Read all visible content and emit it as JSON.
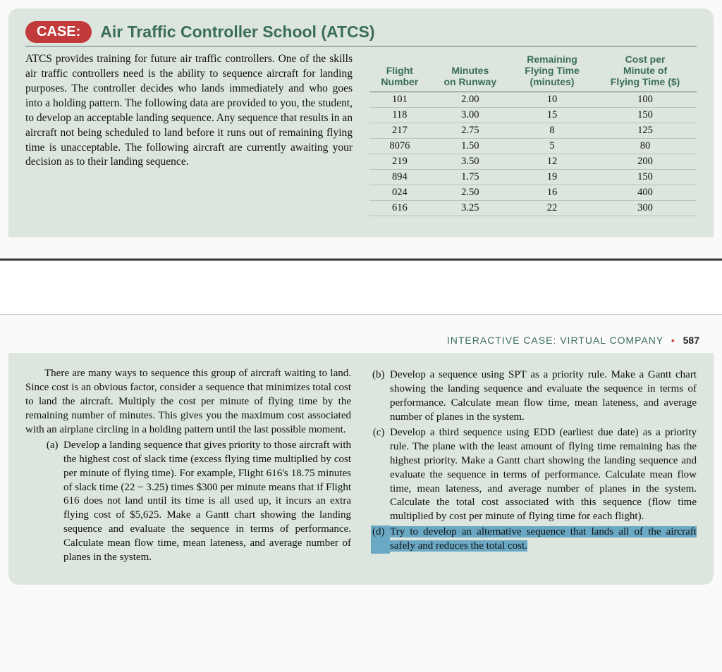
{
  "case": {
    "pill": "CASE:",
    "heading": "Air Traffic Controller School (ATCS)",
    "intro": "ATCS provides training for future air traffic controllers. One of the skills air traffic controllers need is the ability to sequence aircraft for landing purposes. The controller decides who lands immediately and who goes into a holding pattern. The following data are provided to you, the student, to develop an acceptable landing sequence. Any sequence that results in an aircraft not being scheduled to land before it runs out of remaining flying time is unacceptable. The following aircraft are currently awaiting your decision as to their landing sequence."
  },
  "table": {
    "headers": {
      "c1a": "Flight",
      "c1b": "Number",
      "c2a": "Minutes",
      "c2b": "on Runway",
      "c3a": "Remaining",
      "c3b": "Flying Time",
      "c3c": "(minutes)",
      "c4a": "Cost per",
      "c4b": "Minute of",
      "c4c": "Flying Time ($)"
    },
    "rows": [
      {
        "f": "101",
        "m": "2.00",
        "r": "10",
        "c": "100"
      },
      {
        "f": "118",
        "m": "3.00",
        "r": "15",
        "c": "150"
      },
      {
        "f": "217",
        "m": "2.75",
        "r": "8",
        "c": "125"
      },
      {
        "f": "8076",
        "m": "1.50",
        "r": "5",
        "c": "80"
      },
      {
        "f": "219",
        "m": "3.50",
        "r": "12",
        "c": "200"
      },
      {
        "f": "894",
        "m": "1.75",
        "r": "19",
        "c": "150"
      },
      {
        "f": "024",
        "m": "2.50",
        "r": "16",
        "c": "400"
      },
      {
        "f": "616",
        "m": "3.25",
        "r": "22",
        "c": "300"
      }
    ]
  },
  "pageHeader": {
    "text": "INTERACTIVE CASE: VIRTUAL COMPANY",
    "num": "587"
  },
  "bottom": {
    "leftPara": "There are many ways to sequence this group of aircraft waiting to land. Since cost is an obvious factor, consider a sequence that minimizes total cost to land the aircraft. Multiply the cost per minute of flying time by the remaining number of minutes. This gives you the maximum cost associated with an airplane circling in a holding pattern until the last possible moment.",
    "a": {
      "label": "(a)",
      "text": "Develop a landing sequence that gives priority to those aircraft with the highest cost of slack time (excess flying time multiplied by cost per minute of flying time). For example, Flight 616's 18.75 minutes of slack time (22 − 3.25) times $300 per minute means that if Flight 616 does not land until its time is all used up, it incurs an extra flying cost of $5,625. Make a Gantt chart showing the landing sequence and evaluate the sequence in terms of performance. Calculate mean flow time, mean lateness, and average number of planes in the system."
    },
    "b": {
      "label": "(b)",
      "text": "Develop a sequence using SPT as a priority rule. Make a Gantt chart showing the landing sequence and evaluate the sequence in terms of performance. Calculate mean flow time, mean lateness, and average number of planes in the system."
    },
    "c": {
      "label": "(c)",
      "text": "Develop a third sequence using EDD (earliest due date) as a priority rule. The plane with the least amount of flying time remaining has the highest priority. Make a Gantt chart showing the landing sequence and evaluate the sequence in terms of performance. Calculate mean flow time, mean lateness, and average number of planes in the system. Calculate the total cost associated with this sequence (flow time multiplied by cost per minute of flying time for each flight)."
    },
    "d": {
      "label": "(d)",
      "text": "Try to develop an alternative sequence that lands all of the aircraft safely and reduces the total cost."
    }
  },
  "colors": {
    "panel_bg": "#dce5de",
    "accent_green": "#3b6e56",
    "accent_red": "#c23a3a",
    "highlight": "#6aa8c4"
  }
}
